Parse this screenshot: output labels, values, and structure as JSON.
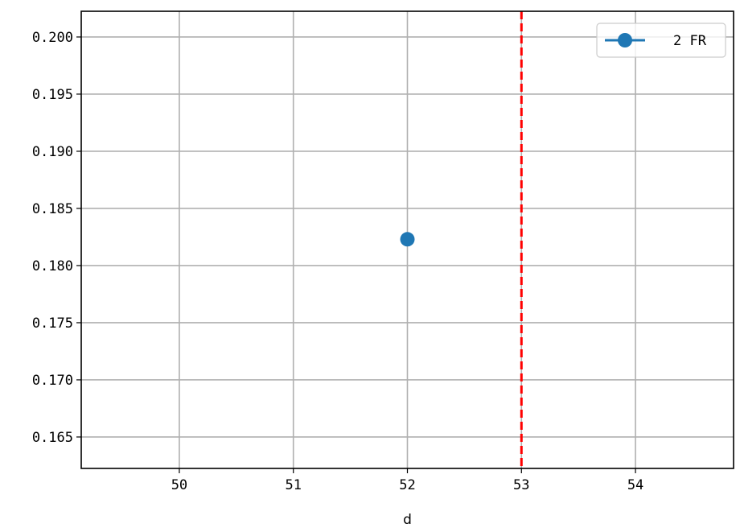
{
  "chart_data": {
    "type": "scatter",
    "xlabel": "d",
    "ylabel": "",
    "xlim": [
      49.14,
      54.86
    ],
    "ylim": [
      0.16225,
      0.20225
    ],
    "x_ticks": [
      50,
      51,
      52,
      53,
      54
    ],
    "y_ticks": [
      0.165,
      0.17,
      0.175,
      0.18,
      0.185,
      0.19,
      0.195,
      0.2
    ],
    "y_tick_labels": [
      "0.165",
      "0.170",
      "0.175",
      "0.180",
      "0.185",
      "0.190",
      "0.195",
      "0.200"
    ],
    "x_tick_labels": [
      "50",
      "51",
      "52",
      "53",
      "54"
    ],
    "grid": true,
    "series": [
      {
        "name": "2 FR",
        "color": "#1f77b4",
        "marker": "circle",
        "x": [
          52
        ],
        "y": [
          0.1823
        ]
      }
    ],
    "vline": {
      "x": 53,
      "color": "#ff0000",
      "style": "dashed"
    },
    "legend": {
      "position": "top-right"
    }
  }
}
